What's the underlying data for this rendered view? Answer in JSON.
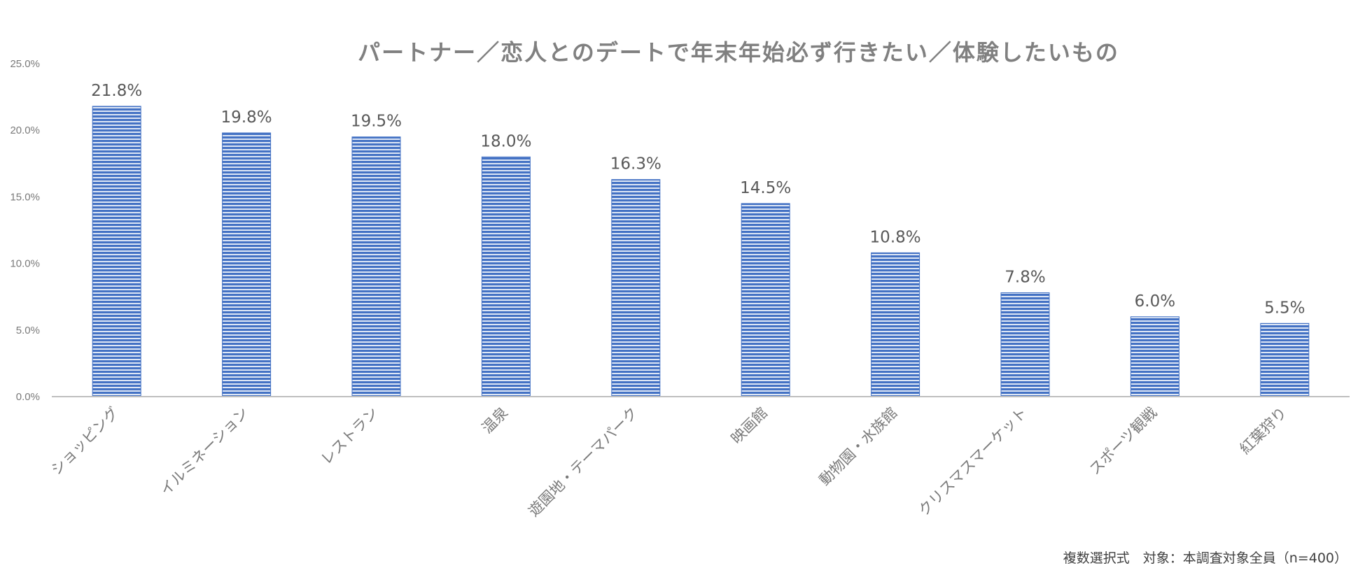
{
  "chart_data": {
    "type": "bar",
    "title": "パートナー／恋人とのデートで年末年始必ず行きたい／体験したいもの",
    "categories": [
      "ショッピング",
      "イルミネーション",
      "レストラン",
      "温泉",
      "遊園地・テーマパーク",
      "映画館",
      "動物園・水族館",
      "クリスマスマーケット",
      "スポーツ観戦",
      "紅葉狩り"
    ],
    "values": [
      21.8,
      19.8,
      19.5,
      18.0,
      16.3,
      14.5,
      10.8,
      7.8,
      6.0,
      5.5
    ],
    "data_labels": [
      "21.8%",
      "19.8%",
      "19.5%",
      "18.0%",
      "16.3%",
      "14.5%",
      "10.8%",
      "7.8%",
      "6.0%",
      "5.5%"
    ],
    "y_ticks": [
      "0.0%",
      "5.0%",
      "10.0%",
      "15.0%",
      "20.0%",
      "25.0%"
    ],
    "ylim": [
      0,
      25
    ],
    "xlabel": "",
    "ylabel": "",
    "grid": false,
    "legend": "none",
    "bar_color": "#4472c4",
    "bar_pattern": "horizontal-stripes"
  },
  "footnote": "複数選択式　対象：本調査対象全員（n=400）"
}
